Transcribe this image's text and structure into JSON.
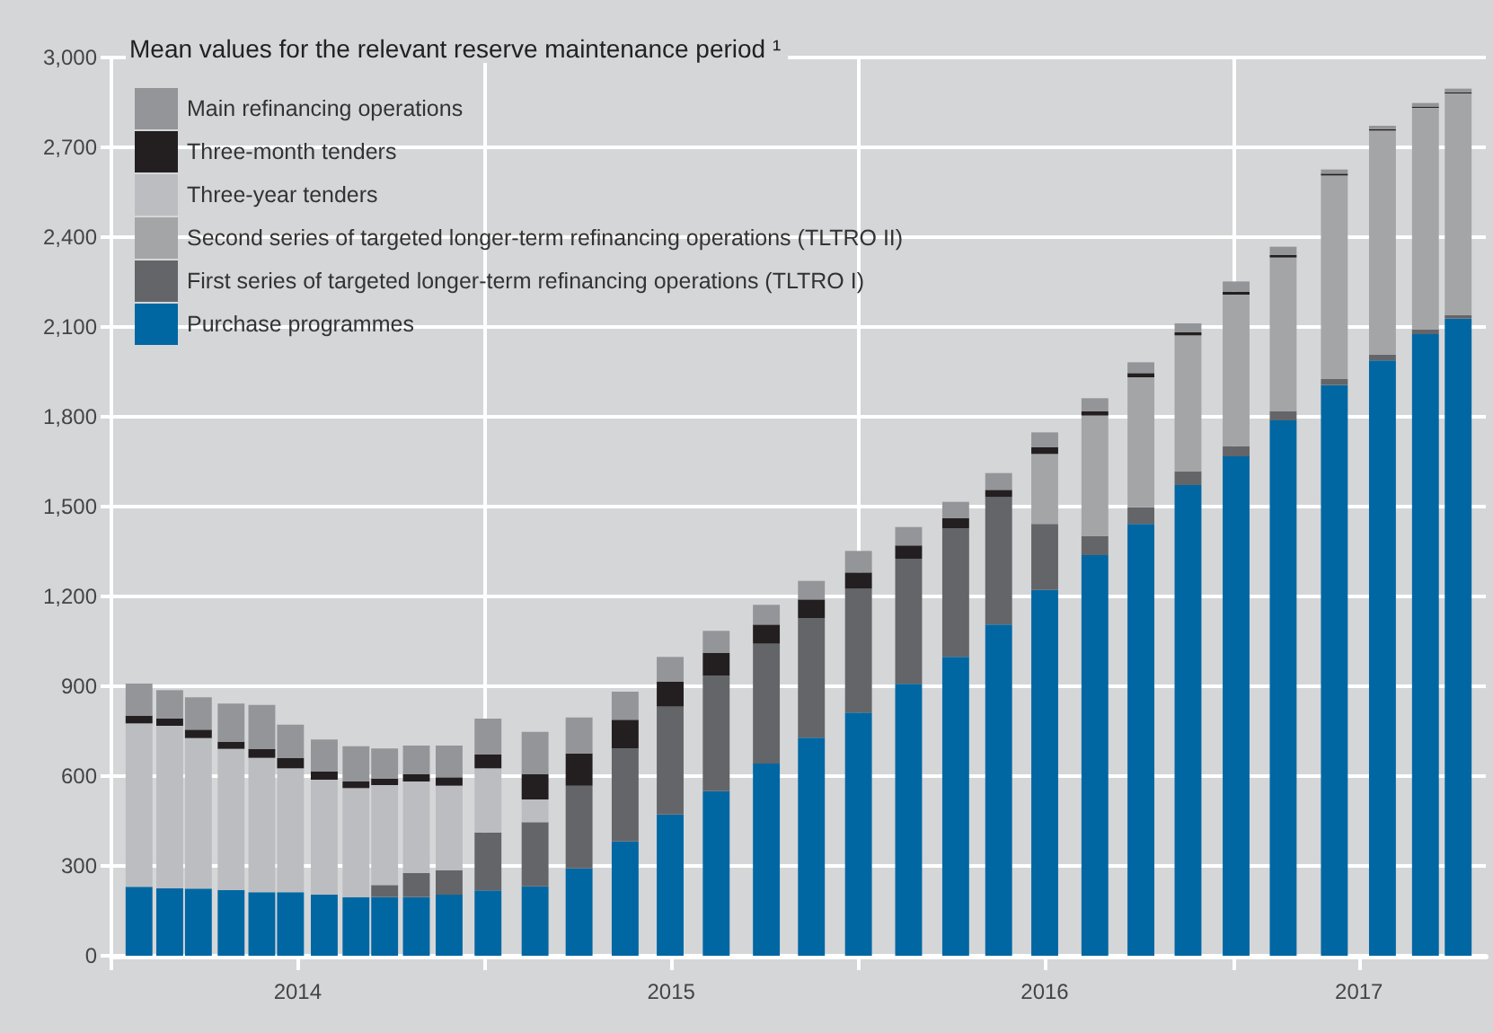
{
  "chart_data": {
    "type": "bar",
    "stacked": true,
    "title": "Mean values for the relevant reserve maintenance period ¹",
    "x": [
      "2014-01-28",
      "2014-02-27",
      "2014-03-27",
      "2014-04-28",
      "2014-05-28",
      "2014-06-25",
      "2014-07-28",
      "2014-08-28",
      "2014-09-25",
      "2014-10-26",
      "2014-11-27",
      "2015-01-04",
      "2015-02-19",
      "2015-04-03",
      "2015-05-18",
      "2015-07-01",
      "2015-08-15",
      "2015-10-03",
      "2015-11-16",
      "2016-01-01",
      "2016-02-19",
      "2016-04-05",
      "2016-05-17",
      "2016-07-01",
      "2016-08-19",
      "2016-10-03",
      "2016-11-18",
      "2017-01-04",
      "2017-02-19",
      "2017-04-10",
      "2017-05-27",
      "2017-07-08",
      "2017-08-09"
    ],
    "series": [
      {
        "name": "Purchase programmes",
        "color": "#0067a3",
        "values": [
          230,
          226,
          224,
          220,
          212,
          212,
          204,
          196,
          196,
          196,
          204,
          218,
          232,
          292,
          382,
          472,
          550,
          642,
          728,
          812,
          908,
          998,
          1106,
          1222,
          1338,
          1442,
          1572,
          1668,
          1788,
          1906,
          1988,
          2076,
          2128
        ]
      },
      {
        "name": "First series of targeted longer-term refinancing operations (TLTRO I)",
        "color": "#646568",
        "values": [
          null,
          null,
          null,
          null,
          null,
          null,
          null,
          null,
          40,
          80,
          82,
          194,
          214,
          276,
          310,
          360,
          386,
          400,
          400,
          414,
          418,
          430,
          426,
          220,
          64,
          56,
          46,
          34,
          30,
          20,
          20,
          16,
          12
        ]
      },
      {
        "name": "Second series of targeted longer-term refinancing operations (TLTRO II)",
        "color": "#a4a5a7",
        "values": [
          null,
          null,
          null,
          null,
          null,
          null,
          null,
          null,
          null,
          null,
          null,
          null,
          null,
          null,
          null,
          null,
          null,
          null,
          null,
          null,
          null,
          null,
          null,
          234,
          402,
          434,
          454,
          506,
          514,
          680,
          748,
          740,
          740
        ]
      },
      {
        "name": "Three-year tenders",
        "color": "#bcbdc0",
        "values": [
          546,
          542,
          503,
          471,
          449,
          414,
          384,
          364,
          334,
          306,
          282,
          214,
          76,
          null,
          null,
          null,
          null,
          null,
          null,
          null,
          null,
          null,
          null,
          null,
          null,
          null,
          null,
          null,
          null,
          null,
          null,
          null,
          null
        ]
      },
      {
        "name": "Three-month tenders",
        "color": "#231f20",
        "values": [
          26,
          24,
          28,
          24,
          30,
          34,
          28,
          22,
          22,
          24,
          28,
          46,
          84,
          108,
          96,
          84,
          76,
          64,
          62,
          54,
          44,
          34,
          24,
          22,
          14,
          14,
          10,
          10,
          8,
          6,
          4,
          4,
          4
        ]
      },
      {
        "name": "Main refinancing operations",
        "color": "#949598",
        "values": [
          107,
          95,
          108,
          127,
          147,
          112,
          106,
          118,
          100,
          96,
          106,
          120,
          142,
          120,
          94,
          82,
          73,
          66,
          62,
          72,
          62,
          54,
          56,
          50,
          44,
          36,
          30,
          34,
          28,
          14,
          12,
          12,
          12
        ]
      }
    ],
    "xlim": [
      "2014-01-01",
      "2017-09-05"
    ],
    "xticks": [
      {
        "value": "2014-01-01",
        "label": null
      },
      {
        "value": "2014-07-02",
        "label": "2014"
      },
      {
        "value": "2015-01-01",
        "label": null
      },
      {
        "value": "2015-07-02",
        "label": "2015"
      },
      {
        "value": "2016-01-01",
        "label": null
      },
      {
        "value": "2016-07-01",
        "label": "2016"
      },
      {
        "value": "2017-01-01",
        "label": null
      },
      {
        "value": "2017-05-04",
        "label": "2017"
      }
    ],
    "ylim": [
      0,
      3000
    ],
    "yticks": [
      0,
      300,
      600,
      900,
      {
        "value": 1200,
        "label": "1,200"
      },
      {
        "value": 1500,
        "label": "1,500"
      },
      {
        "value": 1800,
        "label": "1,800"
      },
      {
        "value": 2100,
        "label": "2,100"
      },
      {
        "value": 2400,
        "label": "2,400"
      },
      {
        "value": 2700,
        "label": "2,700"
      },
      {
        "value": 3000,
        "label": "3,000"
      }
    ],
    "grid": true,
    "legend": "top left"
  }
}
